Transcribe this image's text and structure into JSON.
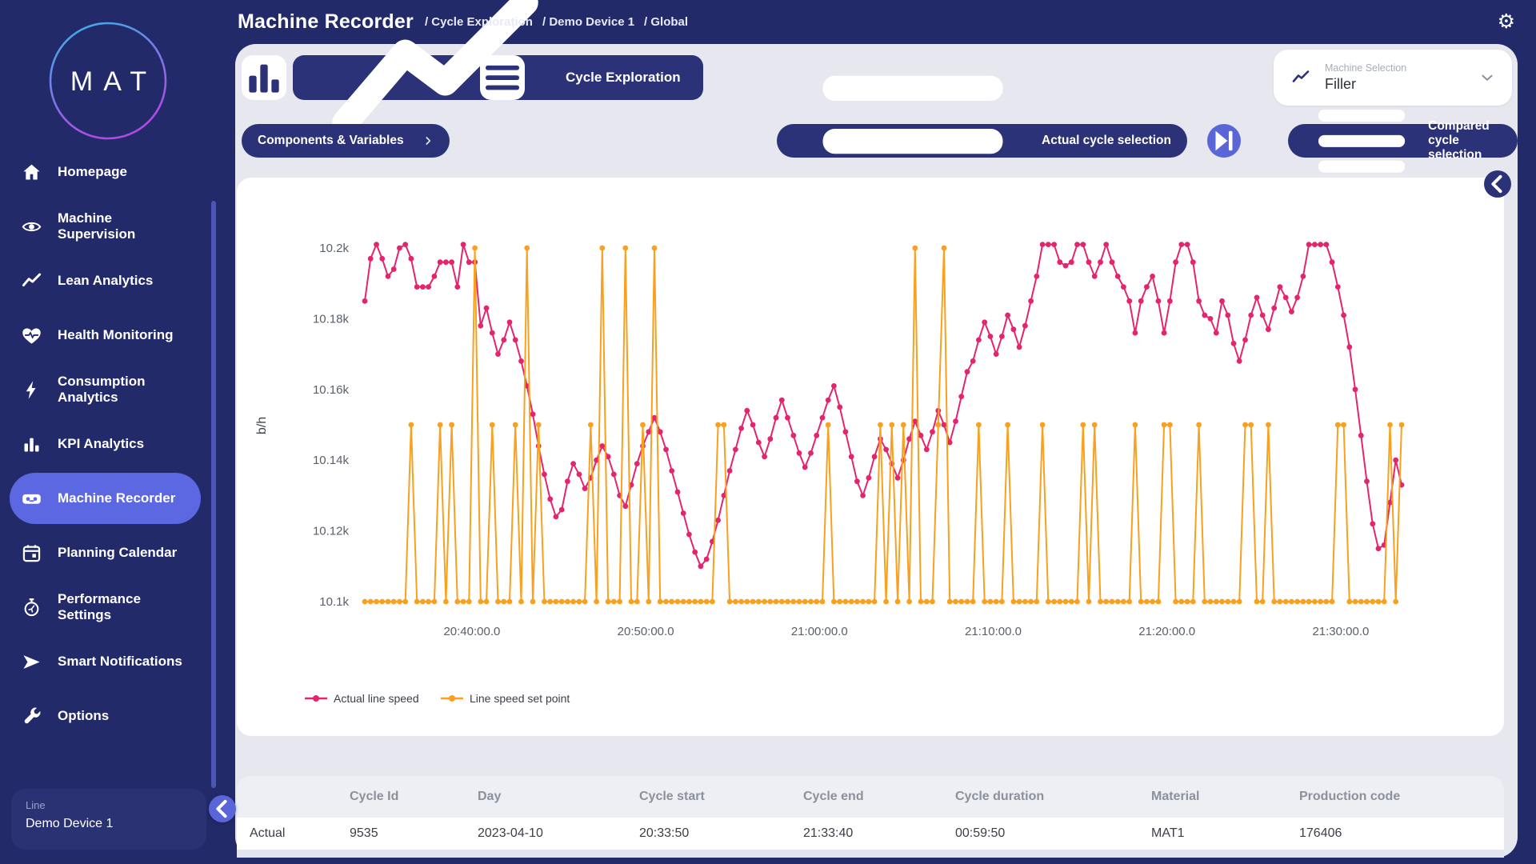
{
  "colors": {
    "page_navy": "#232a6a",
    "button_navy": "#2b3277",
    "indigo_accent": "#5a66d8",
    "active_item_bg": "#5b68e1",
    "panel_gray": "#e7e8ef",
    "series_pink": "#e5246e",
    "series_orange": "#f9a01f"
  },
  "header": {
    "title": "Machine Recorder",
    "breadcrumbs": [
      "Cycle Exploration",
      "Demo Device 1",
      "Global"
    ]
  },
  "sidebar": {
    "logo_text": "MAT",
    "items": [
      {
        "label": "Homepage",
        "icon": "home",
        "active": false
      },
      {
        "label": "Machine Supervision",
        "icon": "eye",
        "active": false
      },
      {
        "label": "Lean Analytics",
        "icon": "trend",
        "active": false
      },
      {
        "label": "Health Monitoring",
        "icon": "heart",
        "active": false
      },
      {
        "label": "Consumption Analytics",
        "icon": "bolt",
        "active": false
      },
      {
        "label": "KPI Analytics",
        "icon": "bars",
        "active": false
      },
      {
        "label": "Machine Recorder",
        "icon": "recorder",
        "active": true
      },
      {
        "label": "Planning Calendar",
        "icon": "calendar",
        "active": false
      },
      {
        "label": "Performance Settings",
        "icon": "stopwatch",
        "active": false
      },
      {
        "label": "Smart Notifications",
        "icon": "send",
        "active": false
      },
      {
        "label": "Options",
        "icon": "wrench",
        "active": false
      }
    ],
    "line_selector": {
      "label": "Line",
      "value": "Demo Device 1"
    }
  },
  "toolbar": {
    "cycle_exploration_label": "Cycle Exploration",
    "machine_selection": {
      "label": "Machine Selection",
      "value": "Filler"
    }
  },
  "controls": {
    "components_variables_label": "Components & Variables",
    "actual_cycle_label": "Actual cycle selection",
    "compared_cycle_label": "Compared cycle selection"
  },
  "chart_data": {
    "type": "line",
    "ylabel": "b/h",
    "grid": false,
    "legend_position": "bottom-left",
    "x_start_time": "20:33:50",
    "sample_interval_seconds": 20,
    "ylim": [
      10090,
      10210
    ],
    "x_ticks": [
      {
        "label": "20:40:00.0",
        "t": 370
      },
      {
        "label": "20:50:00.0",
        "t": 970
      },
      {
        "label": "21:00:00.0",
        "t": 1570
      },
      {
        "label": "21:10:00.0",
        "t": 2170
      },
      {
        "label": "21:20:00.0",
        "t": 2770
      },
      {
        "label": "21:30:00.0",
        "t": 3370
      }
    ],
    "y_ticks": [
      {
        "label": "10.2k",
        "value": 10200
      },
      {
        "label": "10.18k",
        "value": 10180
      },
      {
        "label": "10.16k",
        "value": 10160
      },
      {
        "label": "10.14k",
        "value": 10140
      },
      {
        "label": "10.12k",
        "value": 10120
      },
      {
        "label": "10.1k",
        "value": 10100
      }
    ],
    "series": [
      {
        "name": "Actual line speed",
        "color": "#e5246e",
        "values": [
          10185,
          10197,
          10201,
          10197,
          10192,
          10194,
          10200,
          10201,
          10197,
          10189,
          10189,
          10189,
          10192,
          10196,
          10196,
          10196,
          10189,
          10201,
          10196,
          10196,
          10178,
          10183,
          10176,
          10170,
          10174,
          10179,
          10174,
          10168,
          10161,
          10153,
          10144,
          10136,
          10129,
          10124,
          10126,
          10134,
          10139,
          10136,
          10132,
          10135,
          10140,
          10144,
          10141,
          10136,
          10130,
          10127,
          10133,
          10139,
          10144,
          10148,
          10152,
          10148,
          10143,
          10137,
          10131,
          10125,
          10119,
          10114,
          10110,
          10112,
          10117,
          10123,
          10130,
          10137,
          10143,
          10149,
          10154,
          10150,
          10145,
          10141,
          10146,
          10152,
          10157,
          10152,
          10147,
          10142,
          10138,
          10142,
          10147,
          10152,
          10157,
          10161,
          10155,
          10148,
          10141,
          10134,
          10130,
          10135,
          10141,
          10146,
          10143,
          10139,
          10135,
          10140,
          10146,
          10151,
          10147,
          10143,
          10148,
          10154,
          10150,
          10145,
          10151,
          10158,
          10165,
          10168,
          10174,
          10179,
          10175,
          10170,
          10175,
          10181,
          10177,
          10172,
          10178,
          10185,
          10192,
          10201,
          10201,
          10201,
          10196,
          10195,
          10196,
          10201,
          10201,
          10196,
          10192,
          10196,
          10201,
          10196,
          10192,
          10189,
          10185,
          10176,
          10185,
          10189,
          10192,
          10185,
          10176,
          10185,
          10196,
          10201,
          10201,
          10196,
          10185,
          10181,
          10180,
          10176,
          10185,
          10181,
          10173,
          10168,
          10174,
          10181,
          10186,
          10181,
          10177,
          10183,
          10189,
          10186,
          10182,
          10186,
          10192,
          10201,
          10201,
          10201,
          10201,
          10196,
          10189,
          10181,
          10172,
          10160,
          10147,
          10134,
          10122,
          10115,
          10116,
          10128,
          10140,
          10133
        ]
      },
      {
        "name": "Line speed set point",
        "color": "#f9a01f",
        "values": [
          10100,
          10100,
          10100,
          10100,
          10100,
          10100,
          10100,
          10100,
          10150,
          10100,
          10100,
          10100,
          10100,
          10150,
          10100,
          10150,
          10100,
          10100,
          10100,
          10200,
          10100,
          10100,
          10150,
          10100,
          10100,
          10100,
          10150,
          10100,
          10200,
          10100,
          10150,
          10100,
          10100,
          10100,
          10100,
          10100,
          10100,
          10100,
          10100,
          10150,
          10100,
          10200,
          10100,
          10100,
          10100,
          10200,
          10100,
          10100,
          10150,
          10100,
          10200,
          10100,
          10100,
          10100,
          10100,
          10100,
          10100,
          10100,
          10100,
          10100,
          10100,
          10150,
          10150,
          10100,
          10100,
          10100,
          10100,
          10100,
          10100,
          10100,
          10100,
          10100,
          10100,
          10100,
          10100,
          10100,
          10100,
          10100,
          10100,
          10100,
          10150,
          10100,
          10100,
          10100,
          10100,
          10100,
          10100,
          10100,
          10100,
          10150,
          10100,
          10150,
          10100,
          10150,
          10100,
          10200,
          10100,
          10100,
          10100,
          10150,
          10200,
          10100,
          10100,
          10100,
          10100,
          10100,
          10150,
          10100,
          10100,
          10100,
          10100,
          10150,
          10100,
          10100,
          10100,
          10100,
          10100,
          10150,
          10100,
          10100,
          10100,
          10100,
          10100,
          10100,
          10150,
          10100,
          10150,
          10100,
          10100,
          10100,
          10100,
          10100,
          10100,
          10150,
          10100,
          10100,
          10100,
          10100,
          10150,
          10150,
          10100,
          10100,
          10100,
          10100,
          10150,
          10100,
          10100,
          10100,
          10100,
          10100,
          10100,
          10100,
          10150,
          10150,
          10100,
          10100,
          10150,
          10100,
          10100,
          10100,
          10100,
          10100,
          10100,
          10100,
          10100,
          10100,
          10100,
          10100,
          10150,
          10150,
          10100,
          10100,
          10100,
          10100,
          10100,
          10100,
          10100,
          10150,
          10100,
          10150
        ]
      }
    ]
  },
  "table": {
    "columns": [
      "",
      "Cycle Id",
      "Day",
      "Cycle start",
      "Cycle end",
      "Cycle duration",
      "Material",
      "Production code"
    ],
    "rows": [
      [
        "Actual",
        "9535",
        "2023-04-10",
        "20:33:50",
        "21:33:40",
        "00:59:50",
        "MAT1",
        "176406"
      ]
    ]
  }
}
